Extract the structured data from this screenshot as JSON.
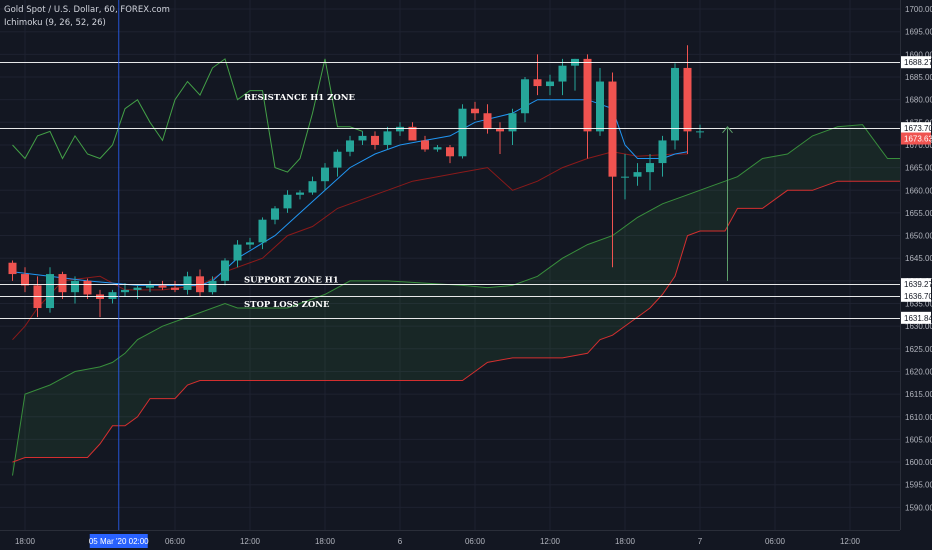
{
  "legend": {
    "symbol": "Gold Spot / U.S. Dollar, 60, FOREX.com",
    "indicator": "Ichimoku (9, 26, 52, 26)"
  },
  "colors": {
    "background": "#131722",
    "grid": "#1e2230",
    "up": "#26a69a",
    "down": "#ef5350",
    "tenkan": "#2196f3",
    "kijun": "#8b1a1a",
    "chikou": "#43a047",
    "span_a": "#388e3c",
    "span_b": "#d32f2f",
    "cloud": "rgba(67,160,71,0.12)",
    "hline": "#ffffff",
    "arrow": "#5d9e6a",
    "crosshair": "#2962ff"
  },
  "chart_data": {
    "type": "candlestick",
    "y_range": [
      1585,
      1702
    ],
    "y_ticks": [
      "1590.00",
      "1595.00",
      "1600.00",
      "1605.00",
      "1610.00",
      "1615.00",
      "1620.00",
      "1625.00",
      "1630.00",
      "1635.00",
      "1640.00",
      "1645.00",
      "1650.00",
      "1655.00",
      "1660.00",
      "1665.00",
      "1670.00",
      "1675.00",
      "1680.00",
      "1685.00",
      "1690.00",
      "1695.00",
      "1700.00"
    ],
    "x_ticks": [
      {
        "label": "18:00",
        "bar": 1
      },
      {
        "label": "06:00",
        "bar": 13
      },
      {
        "label": "12:00",
        "bar": 19
      },
      {
        "label": "18:00",
        "bar": 25
      },
      {
        "label": "6",
        "bar": 31
      },
      {
        "label": "06:00",
        "bar": 37
      },
      {
        "label": "12:00",
        "bar": 43
      },
      {
        "label": "18:00",
        "bar": 49
      },
      {
        "label": "7",
        "bar": 55
      },
      {
        "label": "06:00",
        "bar": 61
      },
      {
        "label": "12:00",
        "bar": 67
      }
    ],
    "crosshair_bar": 8.5,
    "crosshair_label": "05 Mar '20  02:00",
    "candles": [
      [
        1644,
        1644.5,
        1640,
        1641.5
      ],
      [
        1641.5,
        1643,
        1637.5,
        1639
      ],
      [
        1639,
        1641,
        1632,
        1634
      ],
      [
        1634,
        1643,
        1633,
        1641.5
      ],
      [
        1641.5,
        1642,
        1636,
        1637.5
      ],
      [
        1637.5,
        1641,
        1635,
        1640
      ],
      [
        1640,
        1640.5,
        1636,
        1637
      ],
      [
        1637,
        1638,
        1632,
        1636
      ],
      [
        1636,
        1638,
        1635,
        1637.5
      ],
      [
        1637.5,
        1639.5,
        1636.5,
        1638
      ],
      [
        1638,
        1639,
        1636,
        1638.5
      ],
      [
        1638.5,
        1640,
        1637.5,
        1639
      ],
      [
        1639,
        1640,
        1638,
        1638.5
      ],
      [
        1638.5,
        1640,
        1637.5,
        1638
      ],
      [
        1638,
        1642,
        1637,
        1641
      ],
      [
        1641,
        1642.5,
        1636.5,
        1637.5
      ],
      [
        1637.5,
        1641,
        1637,
        1640
      ],
      [
        1640,
        1645,
        1639,
        1644.5
      ],
      [
        1644.5,
        1649,
        1643,
        1648
      ],
      [
        1648,
        1649.5,
        1647,
        1648.5
      ],
      [
        1648.5,
        1654,
        1647,
        1653.5
      ],
      [
        1653.5,
        1656.5,
        1652.5,
        1656
      ],
      [
        1656,
        1660,
        1655,
        1659
      ],
      [
        1659,
        1660,
        1658,
        1659.5
      ],
      [
        1659.5,
        1663,
        1659,
        1662
      ],
      [
        1662,
        1666,
        1660,
        1665
      ],
      [
        1665,
        1669,
        1663,
        1668.5
      ],
      [
        1668.5,
        1672,
        1667.5,
        1671
      ],
      [
        1671,
        1673,
        1670,
        1672
      ],
      [
        1672,
        1673,
        1669,
        1670
      ],
      [
        1670,
        1674,
        1669,
        1673
      ],
      [
        1673,
        1675,
        1672,
        1674
      ],
      [
        1674,
        1675,
        1672,
        1671
      ],
      [
        1671,
        1672,
        1668.5,
        1669
      ],
      [
        1669,
        1670,
        1668.5,
        1669.5
      ],
      [
        1669.5,
        1670,
        1666,
        1667.5
      ],
      [
        1667.5,
        1679,
        1667,
        1678
      ],
      [
        1678,
        1679.5,
        1675.5,
        1677
      ],
      [
        1677,
        1679,
        1672.5,
        1673.5
      ],
      [
        1673.5,
        1675,
        1668,
        1673
      ],
      [
        1673,
        1678,
        1670,
        1677
      ],
      [
        1677,
        1685,
        1675,
        1684.5
      ],
      [
        1684.5,
        1690,
        1681,
        1683
      ],
      [
        1683,
        1685.5,
        1681,
        1684
      ],
      [
        1684,
        1689,
        1681,
        1687.5
      ],
      [
        1687.5,
        1689,
        1682,
        1689
      ],
      [
        1689,
        1690,
        1667,
        1673
      ],
      [
        1673,
        1687,
        1672,
        1684
      ],
      [
        1684,
        1686,
        1643,
        1663
      ],
      [
        1663,
        1668,
        1658,
        1663
      ],
      [
        1663,
        1666,
        1661,
        1664
      ],
      [
        1664,
        1668,
        1660,
        1666
      ],
      [
        1666,
        1672,
        1663,
        1671
      ],
      [
        1671,
        1688,
        1669,
        1687
      ],
      [
        1687,
        1692,
        1668,
        1673
      ],
      [
        1673,
        1674.5,
        1671.5,
        1673
      ]
    ],
    "tenkan": [
      [
        0,
        1642
      ],
      [
        6,
        1640
      ],
      [
        10,
        1639
      ],
      [
        15,
        1639
      ],
      [
        16,
        1640
      ],
      [
        18,
        1645
      ],
      [
        21,
        1650
      ],
      [
        23,
        1655
      ],
      [
        25,
        1660
      ],
      [
        27,
        1665
      ],
      [
        29,
        1668
      ],
      [
        31,
        1670
      ],
      [
        33,
        1671
      ],
      [
        35,
        1672
      ],
      [
        37,
        1675
      ],
      [
        40,
        1677
      ],
      [
        42,
        1680
      ],
      [
        44,
        1680
      ],
      [
        46,
        1680
      ],
      [
        48,
        1678
      ],
      [
        49,
        1670
      ],
      [
        50,
        1667
      ],
      [
        52,
        1667
      ],
      [
        53,
        1668
      ],
      [
        54,
        1668.5
      ]
    ],
    "kijun": [
      [
        0,
        1627
      ],
      [
        1,
        1630
      ],
      [
        2,
        1634
      ],
      [
        4,
        1640
      ],
      [
        7,
        1641
      ],
      [
        9,
        1638
      ],
      [
        12,
        1638
      ],
      [
        15,
        1639
      ],
      [
        17,
        1642
      ],
      [
        20,
        1645
      ],
      [
        22,
        1650
      ],
      [
        24,
        1652
      ],
      [
        26,
        1656
      ],
      [
        28,
        1658
      ],
      [
        30,
        1660
      ],
      [
        32,
        1662
      ],
      [
        34,
        1663
      ],
      [
        36,
        1664
      ],
      [
        38,
        1665
      ],
      [
        40,
        1660
      ],
      [
        42,
        1662
      ],
      [
        44,
        1665
      ],
      [
        46,
        1667
      ],
      [
        48,
        1668.5
      ],
      [
        49,
        1668
      ],
      [
        50,
        1667.5
      ],
      [
        53,
        1668
      ],
      [
        54,
        1668
      ]
    ],
    "chikou": [
      [
        0,
        1670
      ],
      [
        1,
        1667
      ],
      [
        2,
        1672
      ],
      [
        3,
        1673
      ],
      [
        4,
        1667
      ],
      [
        5,
        1672
      ],
      [
        6,
        1668
      ],
      [
        7,
        1667
      ],
      [
        8,
        1670
      ],
      [
        9,
        1678
      ],
      [
        10,
        1680
      ],
      [
        11,
        1675
      ],
      [
        12,
        1671
      ],
      [
        13,
        1680
      ],
      [
        14,
        1684
      ],
      [
        15,
        1681
      ],
      [
        16,
        1687
      ],
      [
        17,
        1689
      ],
      [
        18,
        1680
      ],
      [
        19,
        1682
      ],
      [
        20,
        1682
      ],
      [
        21,
        1665
      ],
      [
        22,
        1664
      ],
      [
        23,
        1667
      ],
      [
        24,
        1677
      ],
      [
        25,
        1689
      ],
      [
        26,
        1674
      ],
      [
        27,
        1674
      ],
      [
        28,
        1673
      ]
    ],
    "span_a": [
      [
        0,
        1597
      ],
      [
        1,
        1615
      ],
      [
        3,
        1617
      ],
      [
        5,
        1620
      ],
      [
        7,
        1621
      ],
      [
        8,
        1622
      ],
      [
        9,
        1624
      ],
      [
        10,
        1627
      ],
      [
        12,
        1630
      ],
      [
        14,
        1632
      ],
      [
        15,
        1633
      ],
      [
        17,
        1635
      ],
      [
        18,
        1634
      ],
      [
        20,
        1634
      ],
      [
        22,
        1634
      ],
      [
        23,
        1635
      ],
      [
        25,
        1637
      ],
      [
        27,
        1640
      ],
      [
        30,
        1640
      ],
      [
        33,
        1639.5
      ],
      [
        36,
        1639
      ],
      [
        38,
        1638.5
      ],
      [
        40,
        1639
      ],
      [
        42,
        1641
      ],
      [
        44,
        1645
      ],
      [
        46,
        1648
      ],
      [
        48,
        1650
      ],
      [
        50,
        1654
      ],
      [
        52,
        1657
      ],
      [
        54,
        1659
      ],
      [
        56,
        1661
      ],
      [
        58,
        1663
      ],
      [
        60,
        1667
      ],
      [
        62,
        1668
      ],
      [
        64,
        1672
      ],
      [
        66,
        1674
      ],
      [
        68,
        1674.5
      ],
      [
        70,
        1667
      ],
      [
        71,
        1667
      ]
    ],
    "span_b": [
      [
        0,
        1600
      ],
      [
        1,
        1601
      ],
      [
        5,
        1601
      ],
      [
        6,
        1601
      ],
      [
        7,
        1604
      ],
      [
        8,
        1608
      ],
      [
        9,
        1608
      ],
      [
        10,
        1610
      ],
      [
        11,
        1614
      ],
      [
        13,
        1614
      ],
      [
        14,
        1617
      ],
      [
        15,
        1618
      ],
      [
        36,
        1618
      ],
      [
        37,
        1620
      ],
      [
        38,
        1622
      ],
      [
        40,
        1623
      ],
      [
        42,
        1623
      ],
      [
        44,
        1623
      ],
      [
        46,
        1624
      ],
      [
        47,
        1627
      ],
      [
        48,
        1628
      ],
      [
        50,
        1632
      ],
      [
        51,
        1634
      ],
      [
        52,
        1637
      ],
      [
        53,
        1641
      ],
      [
        54,
        1650
      ],
      [
        55,
        1651
      ],
      [
        56,
        1651
      ],
      [
        57,
        1651
      ],
      [
        58,
        1656
      ],
      [
        60,
        1656
      ],
      [
        62,
        1660
      ],
      [
        64,
        1660
      ],
      [
        66,
        1662
      ],
      [
        68,
        1662
      ],
      [
        71,
        1662
      ]
    ],
    "price_labels": [
      "1688.27",
      "1673.70",
      "1673.63",
      "1639.27",
      "1636.70",
      "1631.84"
    ],
    "zones": [
      {
        "label": "RESISTANCE H1 ZONE",
        "price": 1688.27
      },
      {
        "label": "",
        "price": 1673.7
      },
      {
        "label": "SUPPORT ZONE H1",
        "price": 1639.27
      },
      {
        "label": "STOP LOSS ZONE",
        "price": 1636.7
      },
      {
        "label": "",
        "price": 1631.84
      }
    ],
    "current_price": 1673.63,
    "arrow": {
      "bar": 57.2,
      "from": 1640,
      "to": 1674
    }
  }
}
